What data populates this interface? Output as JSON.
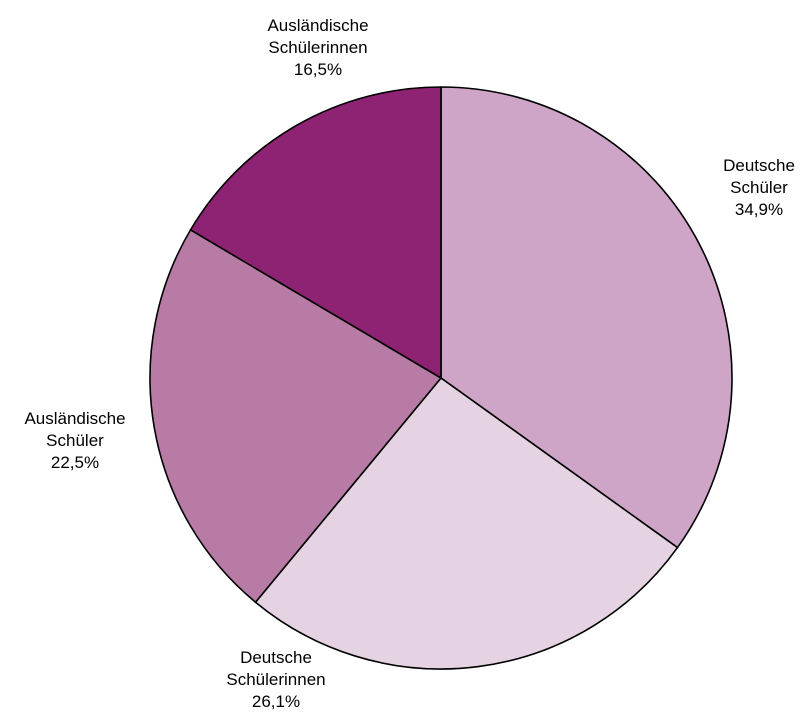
{
  "chart_data": {
    "type": "pie",
    "start_angle_deg": 0,
    "direction": "clockwise",
    "slices": [
      {
        "label_lines": [
          "Deutsche",
          "Schüler"
        ],
        "percent_text": "34,9%",
        "value": 34.9,
        "color": "#cea5c7"
      },
      {
        "label_lines": [
          "Deutsche",
          "Schülerinnen"
        ],
        "percent_text": "26,1%",
        "value": 26.1,
        "color": "#e5d3e3"
      },
      {
        "label_lines": [
          "Ausländische",
          "Schüler"
        ],
        "percent_text": "22,5%",
        "value": 22.5,
        "color": "#b77ba5"
      },
      {
        "label_lines": [
          "Ausländische",
          "Schülerinnen"
        ],
        "percent_text": "16,5%",
        "value": 16.5,
        "color": "#8e2373"
      }
    ]
  }
}
